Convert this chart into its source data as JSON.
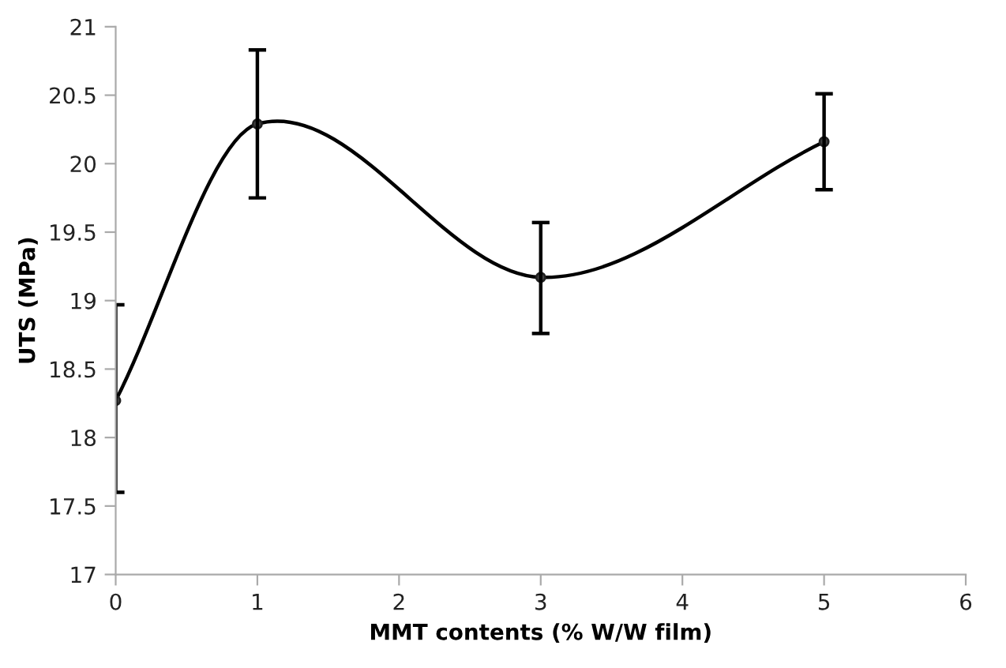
{
  "chart_data": {
    "type": "line",
    "xlabel": "MMT contents (% W/W film)",
    "ylabel": "UTS (MPa)",
    "x": [
      0,
      1,
      3,
      5
    ],
    "series": [
      {
        "color": "#000000",
        "values": [
          18.27,
          20.29,
          19.17,
          20.16
        ],
        "errors": [
          [
            17.6,
            18.97
          ],
          [
            19.75,
            20.83
          ],
          [
            18.76,
            19.57
          ],
          [
            19.81,
            20.51
          ]
        ]
      }
    ],
    "xlim": [
      0,
      6
    ],
    "xticks": [
      0,
      1,
      2,
      3,
      4,
      5,
      6
    ],
    "ylim": [
      17,
      21
    ],
    "yticks": [
      17,
      17.5,
      18,
      18.5,
      19,
      19.5,
      20,
      20.5,
      21
    ],
    "grid": false,
    "legend": false,
    "marker": "circle",
    "line_style": "solid"
  }
}
